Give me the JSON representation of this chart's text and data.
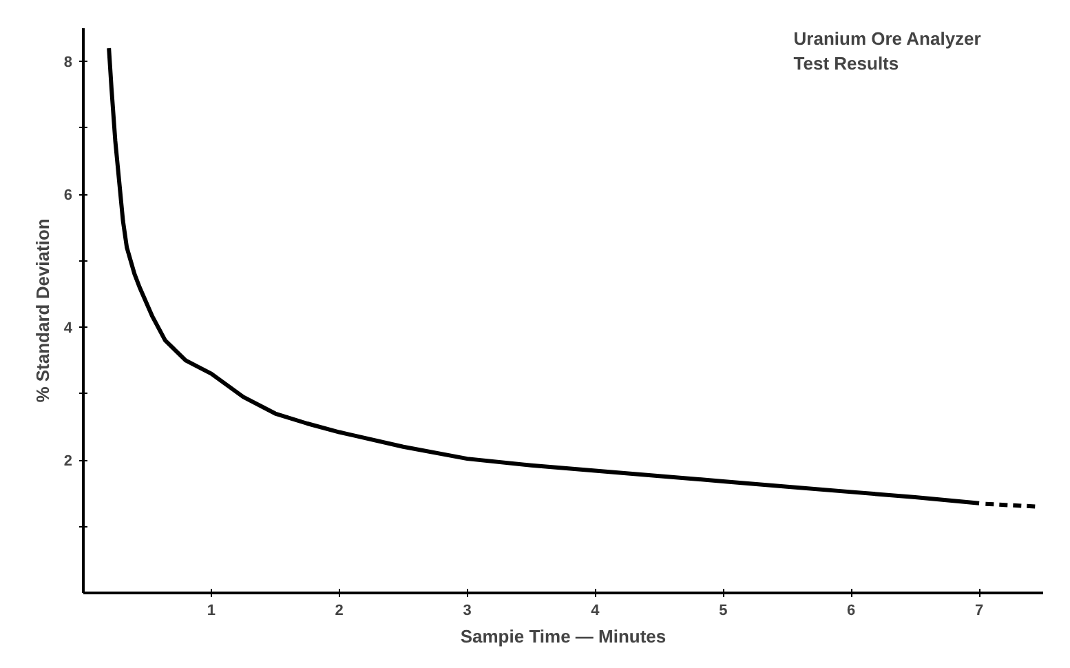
{
  "chart_data": {
    "type": "line",
    "title": "Uranium Ore Analyzer\nTest Results",
    "xlabel": "Sampie Time — Minutes",
    "ylabel": "% Standard Deviation",
    "xlim": [
      0,
      7.5
    ],
    "ylim": [
      0,
      8.5
    ],
    "xticks": [
      1,
      2,
      3,
      4,
      5,
      6,
      7
    ],
    "yticks": [
      {
        "value": 1,
        "label": null
      },
      2,
      {
        "value": 3,
        "label": null
      },
      4,
      {
        "value": 5,
        "label": null
      },
      6,
      {
        "value": 7,
        "label": null
      },
      8
    ],
    "grid": false,
    "marker": "none",
    "series": [
      {
        "color": "#000000",
        "line_style": "solid",
        "x": [
          0.2,
          0.22,
          0.25,
          0.28,
          0.31,
          0.34,
          0.4,
          0.44,
          0.54,
          0.64,
          0.8,
          1,
          1.25,
          1.5,
          1.75,
          2,
          2.5,
          3,
          3.5,
          4,
          4.5,
          5,
          5.5,
          6,
          6.5,
          7
        ],
        "values": [
          8.2,
          7.6,
          6.8,
          6.2,
          5.6,
          5.2,
          4.8,
          4.6,
          4.16,
          3.8,
          3.5,
          3.3,
          2.95,
          2.7,
          2.55,
          2.42,
          2.2,
          2.02,
          1.92,
          1.84,
          1.76,
          1.68,
          1.6,
          1.52,
          1.44,
          1.35
        ]
      },
      {
        "color": "#000000",
        "line_style": "dashed",
        "x": [
          7.05,
          7.45
        ],
        "values": [
          1.34,
          1.3
        ]
      }
    ]
  }
}
